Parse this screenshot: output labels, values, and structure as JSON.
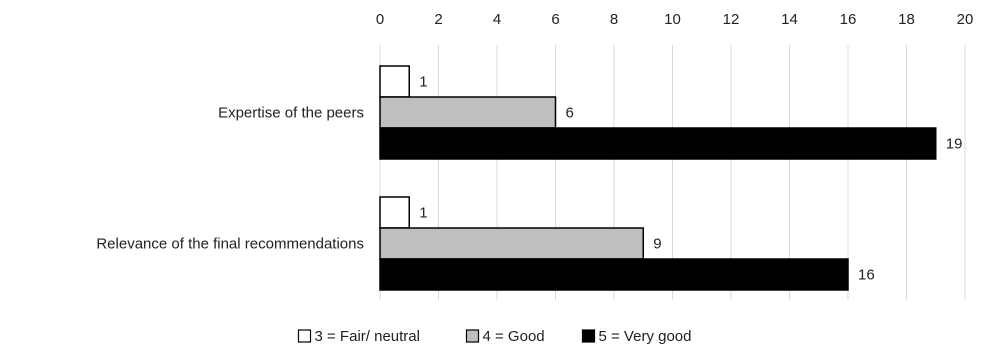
{
  "chart_data": {
    "type": "bar",
    "orientation": "horizontal",
    "title": "",
    "xlabel": "",
    "ylabel": "",
    "xlim": [
      0,
      20
    ],
    "x_ticks": [
      0,
      2,
      4,
      6,
      8,
      10,
      12,
      14,
      16,
      18,
      20
    ],
    "x_axis_position": "top",
    "grid": "vertical gridlines",
    "categories": [
      "Expertise of the peers",
      "Relevance of the final recommendations"
    ],
    "series": [
      {
        "name": "3 = Fair/ neutral",
        "values": [
          1,
          1
        ]
      },
      {
        "name": "4 = Good",
        "values": [
          6,
          9
        ]
      },
      {
        "name": "5 = Very good",
        "values": [
          19,
          16
        ]
      }
    ],
    "data_labels": true,
    "legend": {
      "position": "bottom-center",
      "entries": [
        "3 = Fair/ neutral",
        "4 = Good",
        "5 = Very good"
      ]
    },
    "colors": [
      "#ffffff",
      "#bfbfbf",
      "#000000"
    ],
    "gridline_color": "#d9d9d9",
    "bar_edge_color": "#000000"
  }
}
